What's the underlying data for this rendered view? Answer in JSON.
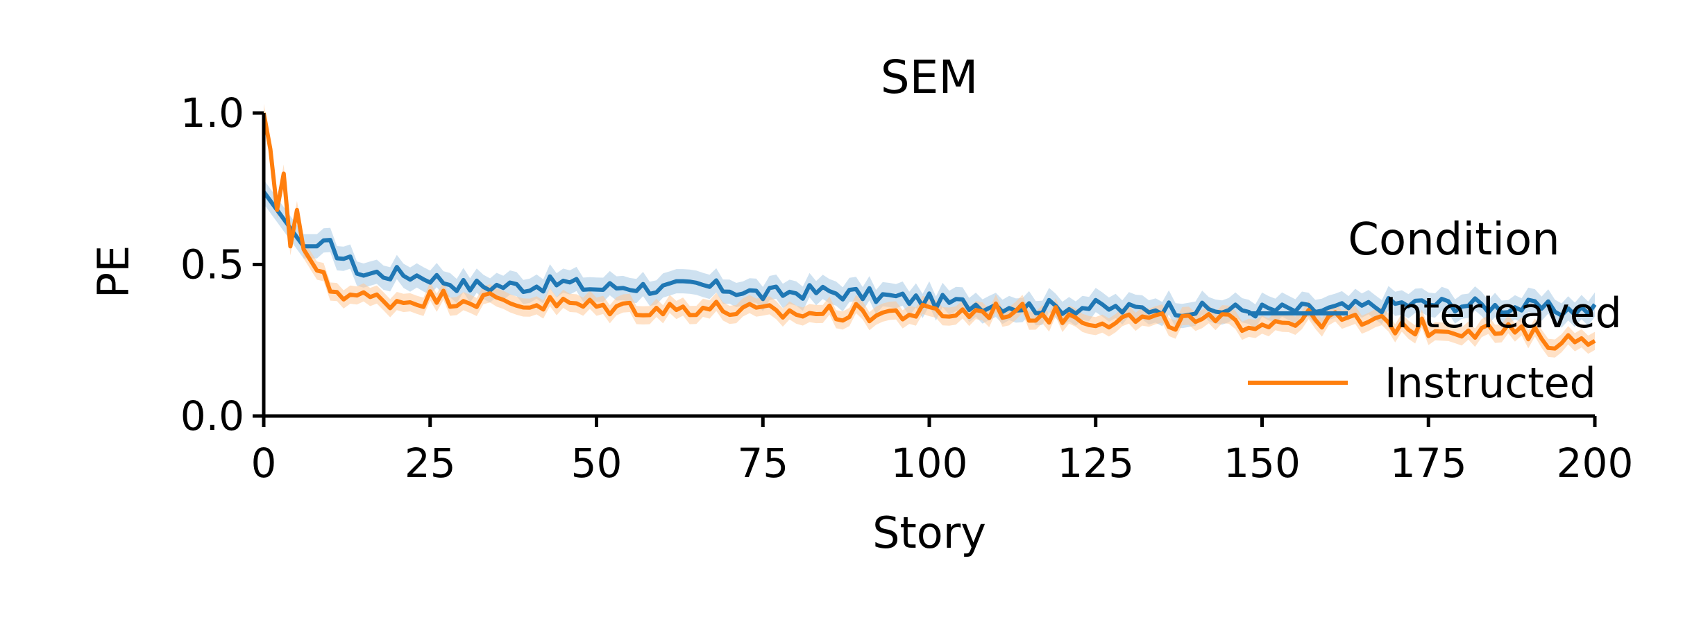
{
  "chart_data": {
    "type": "line",
    "title": "SEM",
    "xlabel": "Story",
    "ylabel": "PE",
    "xlim": [
      0,
      200
    ],
    "ylim": [
      0,
      1
    ],
    "xticks": [
      "0",
      "25",
      "50",
      "75",
      "100",
      "125",
      "150",
      "175",
      "200"
    ],
    "yticks": [
      "0.0",
      "0.5",
      "1.0"
    ],
    "grid": false,
    "legend": {
      "title": "Condition",
      "placement": "right",
      "entries": [
        "Interleaved",
        "Instructed"
      ]
    },
    "series": [
      {
        "name": "Interleaved",
        "color": "#1f77b4",
        "band_color": "#a6c8e4",
        "points": [
          [
            0,
            0.74
          ],
          [
            3,
            0.65
          ],
          [
            6,
            0.56
          ],
          [
            10,
            0.56
          ],
          [
            15,
            0.47
          ],
          [
            20,
            0.47
          ],
          [
            25,
            0.46
          ],
          [
            30,
            0.43
          ],
          [
            35,
            0.43
          ],
          [
            40,
            0.43
          ],
          [
            45,
            0.44
          ],
          [
            50,
            0.42
          ],
          [
            55,
            0.43
          ],
          [
            60,
            0.42
          ],
          [
            65,
            0.43
          ],
          [
            70,
            0.42
          ],
          [
            75,
            0.4
          ],
          [
            80,
            0.41
          ],
          [
            85,
            0.41
          ],
          [
            90,
            0.4
          ],
          [
            95,
            0.39
          ],
          [
            100,
            0.38
          ],
          [
            105,
            0.37
          ],
          [
            110,
            0.37
          ],
          [
            115,
            0.36
          ],
          [
            120,
            0.36
          ],
          [
            125,
            0.36
          ],
          [
            130,
            0.35
          ],
          [
            135,
            0.36
          ],
          [
            140,
            0.35
          ],
          [
            145,
            0.35
          ],
          [
            150,
            0.35
          ],
          [
            155,
            0.35
          ],
          [
            160,
            0.35
          ],
          [
            165,
            0.36
          ],
          [
            170,
            0.37
          ],
          [
            175,
            0.37
          ],
          [
            180,
            0.37
          ],
          [
            185,
            0.36
          ],
          [
            190,
            0.36
          ],
          [
            195,
            0.35
          ],
          [
            200,
            0.35
          ]
        ],
        "ci": 0.04
      },
      {
        "name": "Instructed",
        "color": "#ff7f0e",
        "band_color": "#ffc998",
        "points": [
          [
            0,
            1.0
          ],
          [
            1,
            0.88
          ],
          [
            2,
            0.68
          ],
          [
            3,
            0.8
          ],
          [
            4,
            0.56
          ],
          [
            5,
            0.68
          ],
          [
            6,
            0.55
          ],
          [
            8,
            0.48
          ],
          [
            10,
            0.42
          ],
          [
            15,
            0.39
          ],
          [
            20,
            0.38
          ],
          [
            25,
            0.39
          ],
          [
            30,
            0.39
          ],
          [
            35,
            0.38
          ],
          [
            40,
            0.37
          ],
          [
            45,
            0.37
          ],
          [
            50,
            0.36
          ],
          [
            55,
            0.36
          ],
          [
            60,
            0.35
          ],
          [
            65,
            0.36
          ],
          [
            70,
            0.35
          ],
          [
            75,
            0.34
          ],
          [
            80,
            0.34
          ],
          [
            85,
            0.34
          ],
          [
            90,
            0.34
          ],
          [
            95,
            0.34
          ],
          [
            100,
            0.34
          ],
          [
            105,
            0.34
          ],
          [
            110,
            0.35
          ],
          [
            115,
            0.34
          ],
          [
            120,
            0.33
          ],
          [
            125,
            0.32
          ],
          [
            130,
            0.32
          ],
          [
            135,
            0.31
          ],
          [
            140,
            0.31
          ],
          [
            145,
            0.31
          ],
          [
            150,
            0.31
          ],
          [
            155,
            0.32
          ],
          [
            160,
            0.32
          ],
          [
            165,
            0.31
          ],
          [
            170,
            0.3
          ],
          [
            175,
            0.29
          ],
          [
            180,
            0.29
          ],
          [
            185,
            0.28
          ],
          [
            190,
            0.27
          ],
          [
            195,
            0.24
          ],
          [
            200,
            0.27
          ]
        ],
        "ci": 0.03
      }
    ]
  }
}
